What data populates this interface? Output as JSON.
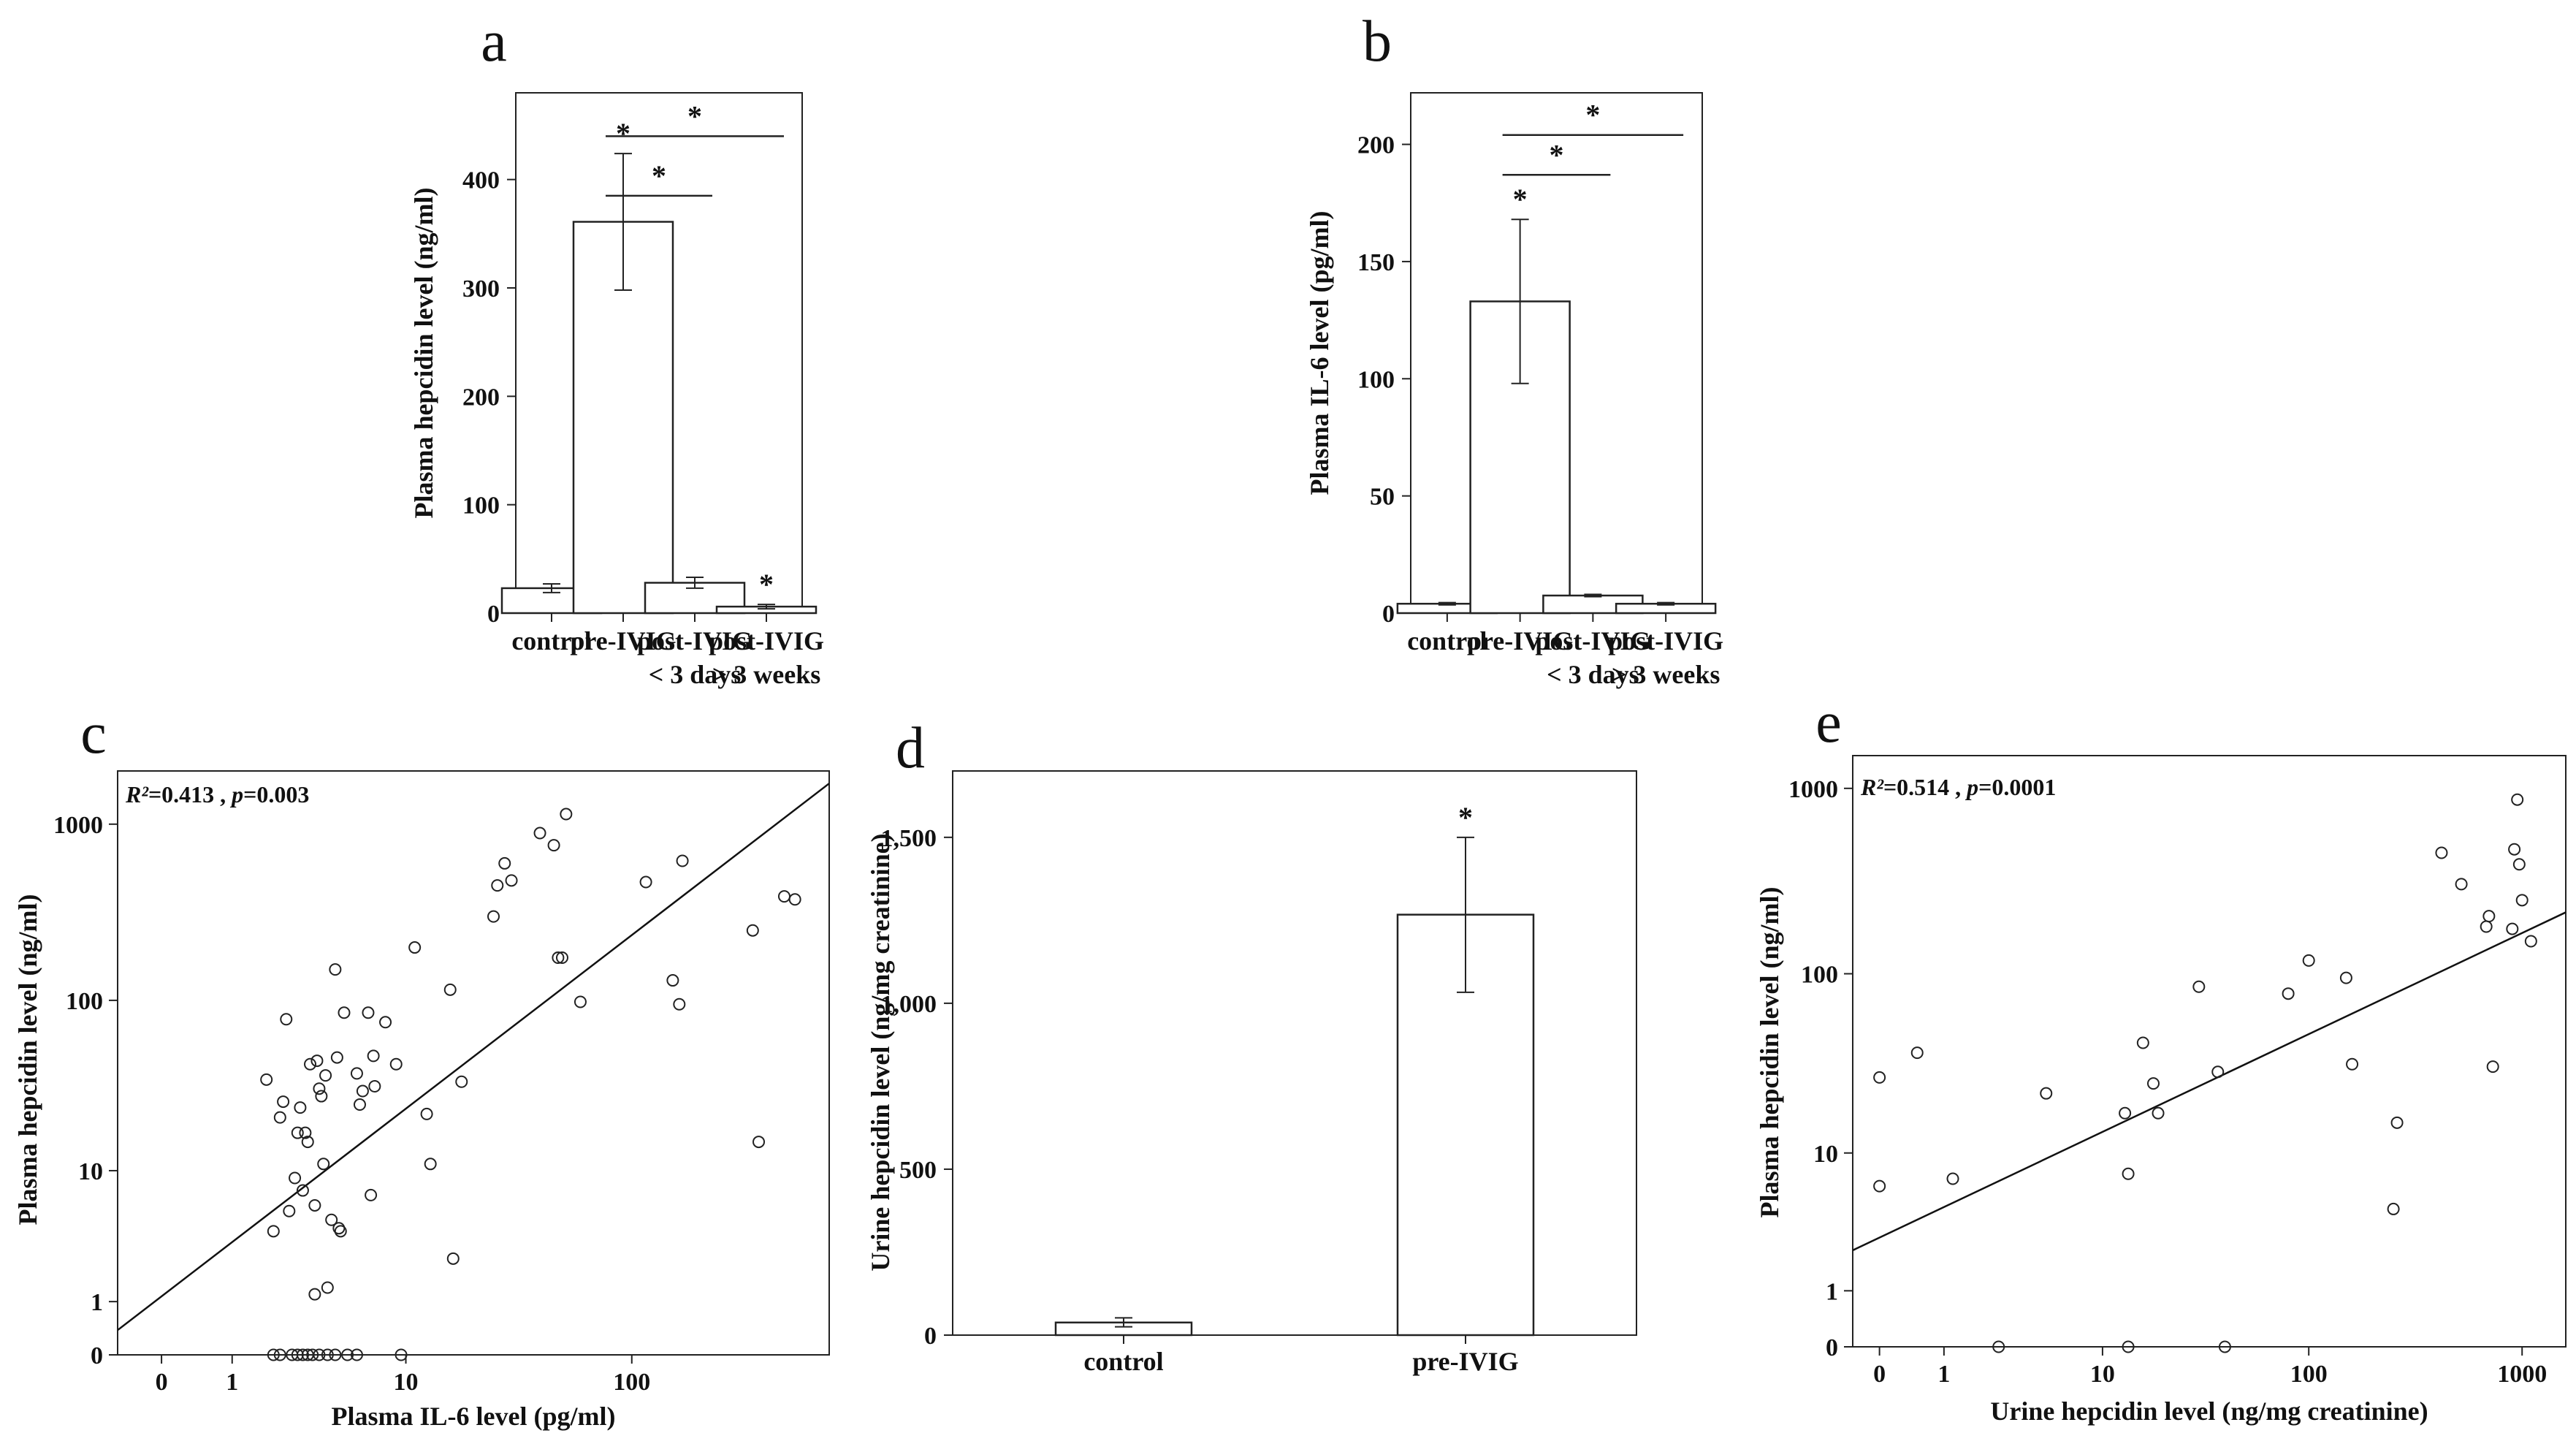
{
  "chart_data": [
    {
      "id": "a",
      "type": "bar",
      "panel_label": "a",
      "ylabel": "Plasma  hepcidin level (ng/ml)",
      "xlabel": "",
      "categories": [
        [
          "control"
        ],
        [
          "pre-IVIG"
        ],
        [
          "post-IVIG",
          "< 3 days"
        ],
        [
          "post-IVIG",
          "> 3 weeks"
        ]
      ],
      "values": [
        23,
        361,
        28,
        6
      ],
      "errors": [
        [
          19,
          27
        ],
        [
          298,
          424
        ],
        [
          23,
          33
        ],
        [
          4,
          8
        ]
      ],
      "ylim": [
        0,
        480
      ],
      "yticks": [
        0,
        100,
        200,
        300,
        400
      ],
      "ytick_labels": [
        "0",
        "100",
        "200",
        "300",
        "400"
      ],
      "point_stars": [
        {
          "category": 1,
          "label": "*"
        },
        {
          "category": 3,
          "label": "*"
        }
      ],
      "brackets": [
        {
          "from": 1,
          "to": 2,
          "value": 385,
          "label": "*"
        },
        {
          "from": 1,
          "to": 3,
          "value": 440,
          "label": "*"
        }
      ]
    },
    {
      "id": "b",
      "type": "bar",
      "panel_label": "b",
      "ylabel": "Plasma IL-6 level (pg/ml)",
      "xlabel": "",
      "categories": [
        [
          "control"
        ],
        [
          "pre-IVIG"
        ],
        [
          "post-IVIG",
          "< 3 days"
        ],
        [
          "post-IVIG",
          "> 3 weeks"
        ]
      ],
      "values": [
        4,
        133,
        7.5,
        4
      ],
      "errors": [
        [
          3.5,
          4.5
        ],
        [
          98,
          168
        ],
        [
          7,
          8
        ],
        [
          3.5,
          4.5
        ]
      ],
      "ylim": [
        0,
        222
      ],
      "yticks": [
        0,
        50,
        100,
        150,
        200
      ],
      "ytick_labels": [
        "0",
        "50",
        "100",
        "150",
        "200"
      ],
      "point_stars": [
        {
          "category": 1,
          "label": "*"
        }
      ],
      "brackets": [
        {
          "from": 1,
          "to": 2,
          "value": 187,
          "label": "*"
        },
        {
          "from": 1,
          "to": 3,
          "value": 204,
          "label": "*"
        }
      ]
    },
    {
      "id": "c",
      "type": "scatter",
      "panel_label": "c",
      "ylabel": "Plasma  hepcidin level (ng/ml)",
      "xlabel": "Plasma IL-6 level (pg/ml)",
      "annotation": {
        "r2_label": "R²",
        "r2_value": "=0.413",
        "separator": " , ",
        "p_label": "p",
        "p_value": "=0.003"
      },
      "scale": "log1p",
      "xlim": [
        -0.35,
        700
      ],
      "ylim": [
        0,
        2000
      ],
      "xticks": [
        0,
        1,
        10,
        100
      ],
      "xtick_labels": [
        "0",
        "1",
        "10",
        "100"
      ],
      "yticks": [
        0,
        1,
        10,
        100,
        1000
      ],
      "ytick_labels": [
        "0",
        "1",
        "10",
        "100",
        "1000"
      ],
      "fit_line": [
        [
          -0.35,
          0.38
        ],
        [
          700,
          1700
        ]
      ],
      "points": [
        [
          1.8,
          35
        ],
        [
          2,
          4
        ],
        [
          2.2,
          21
        ],
        [
          2.3,
          26
        ],
        [
          2.4,
          78
        ],
        [
          2.5,
          5.5
        ],
        [
          2.7,
          9
        ],
        [
          2.8,
          17
        ],
        [
          2.9,
          24
        ],
        [
          3,
          7.5
        ],
        [
          3.1,
          17
        ],
        [
          3.2,
          15
        ],
        [
          3.3,
          43
        ],
        [
          3.5,
          6
        ],
        [
          3.6,
          45
        ],
        [
          3.7,
          31
        ],
        [
          3.8,
          28
        ],
        [
          3.9,
          11
        ],
        [
          4,
          37
        ],
        [
          4.1,
          1.4
        ],
        [
          4.3,
          4.8
        ],
        [
          4.5,
          150
        ],
        [
          4.6,
          47
        ],
        [
          4.7,
          4.2
        ],
        [
          4.8,
          4
        ],
        [
          5,
          85
        ],
        [
          5.8,
          38
        ],
        [
          6,
          25
        ],
        [
          6.2,
          30
        ],
        [
          6.6,
          85
        ],
        [
          6.8,
          7
        ],
        [
          7,
          48
        ],
        [
          7.1,
          32
        ],
        [
          8,
          75
        ],
        [
          9,
          43
        ],
        [
          11,
          200
        ],
        [
          12.5,
          22
        ],
        [
          13,
          11
        ],
        [
          16,
          115
        ],
        [
          16.5,
          2.5
        ],
        [
          18,
          34
        ],
        [
          25,
          300
        ],
        [
          26,
          450
        ],
        [
          28,
          600
        ],
        [
          30,
          480
        ],
        [
          40,
          890
        ],
        [
          46,
          760
        ],
        [
          48,
          175
        ],
        [
          50,
          175
        ],
        [
          52,
          1140
        ],
        [
          60,
          98
        ],
        [
          115,
          470
        ],
        [
          150,
          130
        ],
        [
          160,
          95
        ],
        [
          165,
          620
        ],
        [
          330,
          250
        ],
        [
          350,
          15
        ],
        [
          450,
          390
        ],
        [
          500,
          375
        ],
        [
          3.5,
          1.2
        ],
        [
          2,
          0
        ],
        [
          2.2,
          0
        ],
        [
          2.6,
          0
        ],
        [
          2.8,
          0
        ],
        [
          3.0,
          0
        ],
        [
          3.2,
          0
        ],
        [
          3.4,
          0
        ],
        [
          3.7,
          0
        ],
        [
          4.1,
          0
        ],
        [
          4.5,
          0
        ],
        [
          5.2,
          0
        ],
        [
          5.8,
          0
        ],
        [
          9.5,
          0
        ]
      ]
    },
    {
      "id": "d",
      "type": "bar",
      "panel_label": "d",
      "ylabel": "Urine  hepcidin level (ng/mg creatinine)",
      "xlabel": "",
      "categories": [
        [
          "control"
        ],
        [
          "pre-IVIG"
        ]
      ],
      "values": [
        38,
        1267
      ],
      "errors": [
        [
          25,
          52
        ],
        [
          1033,
          1500
        ]
      ],
      "ylim": [
        0,
        1700
      ],
      "yticks": [
        0,
        500,
        1000,
        1500
      ],
      "ytick_labels": [
        "0",
        "500",
        "1,000",
        "1,500"
      ],
      "point_stars": [
        {
          "category": 1,
          "label": "*"
        }
      ],
      "brackets": []
    },
    {
      "id": "e",
      "type": "scatter",
      "panel_label": "e",
      "ylabel": "Plasma  hepcidin level (ng/ml)",
      "xlabel": "Urine  hepcidin level (ng/mg creatinine)",
      "annotation": {
        "r2_label": "R²",
        "r2_value": "=0.514",
        "separator": " , ",
        "p_label": "p",
        "p_value": "=0.0001"
      },
      "scale": "log1p",
      "xlim": [
        -0.25,
        1600
      ],
      "ylim": [
        0,
        1500
      ],
      "xticks": [
        0,
        1,
        10,
        100,
        1000
      ],
      "xtick_labels": [
        "0",
        "1",
        "10",
        "100",
        "1000"
      ],
      "yticks": [
        0,
        1,
        10,
        100,
        1000
      ],
      "ytick_labels": [
        "0",
        "1",
        "10",
        "100",
        "1000"
      ],
      "fit_line": [
        [
          -0.25,
          2.3
        ],
        [
          1600,
          215
        ]
      ],
      "points": [
        [
          0,
          27
        ],
        [
          0,
          6.3
        ],
        [
          0.5,
          37
        ],
        [
          1.2,
          7
        ],
        [
          2.6,
          0
        ],
        [
          5,
          22
        ],
        [
          13,
          17
        ],
        [
          13.5,
          7.5
        ],
        [
          13.5,
          0
        ],
        [
          16,
          42
        ],
        [
          18,
          25
        ],
        [
          19,
          17
        ],
        [
          30,
          85
        ],
        [
          37,
          29
        ],
        [
          40,
          0
        ],
        [
          80,
          78
        ],
        [
          100,
          118
        ],
        [
          150,
          95
        ],
        [
          160,
          32
        ],
        [
          250,
          4.5
        ],
        [
          260,
          15
        ],
        [
          420,
          450
        ],
        [
          520,
          305
        ],
        [
          680,
          180
        ],
        [
          700,
          205
        ],
        [
          730,
          31
        ],
        [
          900,
          175
        ],
        [
          920,
          470
        ],
        [
          950,
          870
        ],
        [
          970,
          390
        ],
        [
          1000,
          250
        ],
        [
          1100,
          150
        ]
      ]
    }
  ]
}
